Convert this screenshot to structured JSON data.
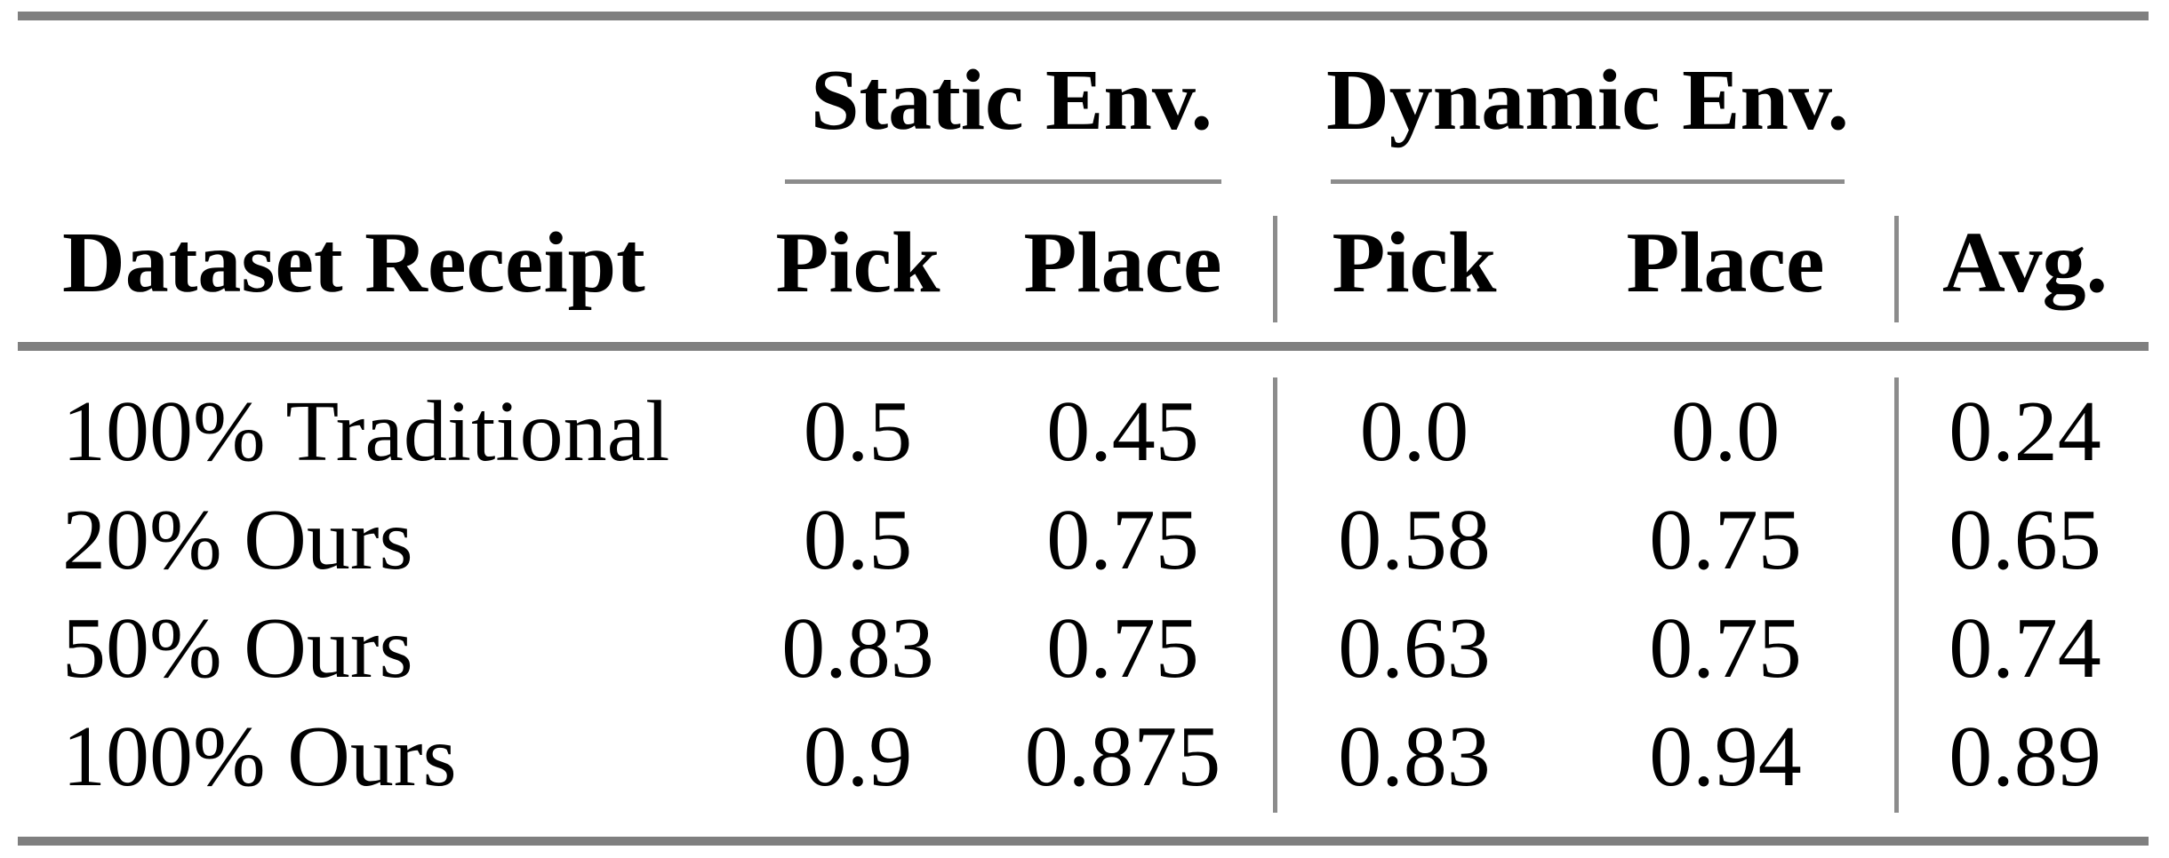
{
  "page": {
    "background": "#ffffff",
    "text_color": "#000000",
    "rule_colors": {
      "thick": "#7f7f7f",
      "thin": "#8c8c8c"
    }
  },
  "table": {
    "group_headers": [
      {
        "label": "Static Env."
      },
      {
        "label": "Dynamic Env."
      }
    ],
    "columns": [
      "Dataset Receipt",
      "Pick",
      "Place",
      "Pick",
      "Place",
      "Avg."
    ],
    "rows": [
      {
        "label": "100% Traditional",
        "values": [
          "0.5",
          "0.45",
          "0.0",
          "0.0",
          "0.24"
        ]
      },
      {
        "label": "20% Ours",
        "values": [
          "0.5",
          "0.75",
          "0.58",
          "0.75",
          "0.65"
        ]
      },
      {
        "label": "50% Ours",
        "values": [
          "0.83",
          "0.75",
          "0.63",
          "0.75",
          "0.74"
        ]
      },
      {
        "label": "100% Ours",
        "values": [
          "0.9",
          "0.875",
          "0.83",
          "0.94",
          "0.89"
        ]
      }
    ]
  }
}
